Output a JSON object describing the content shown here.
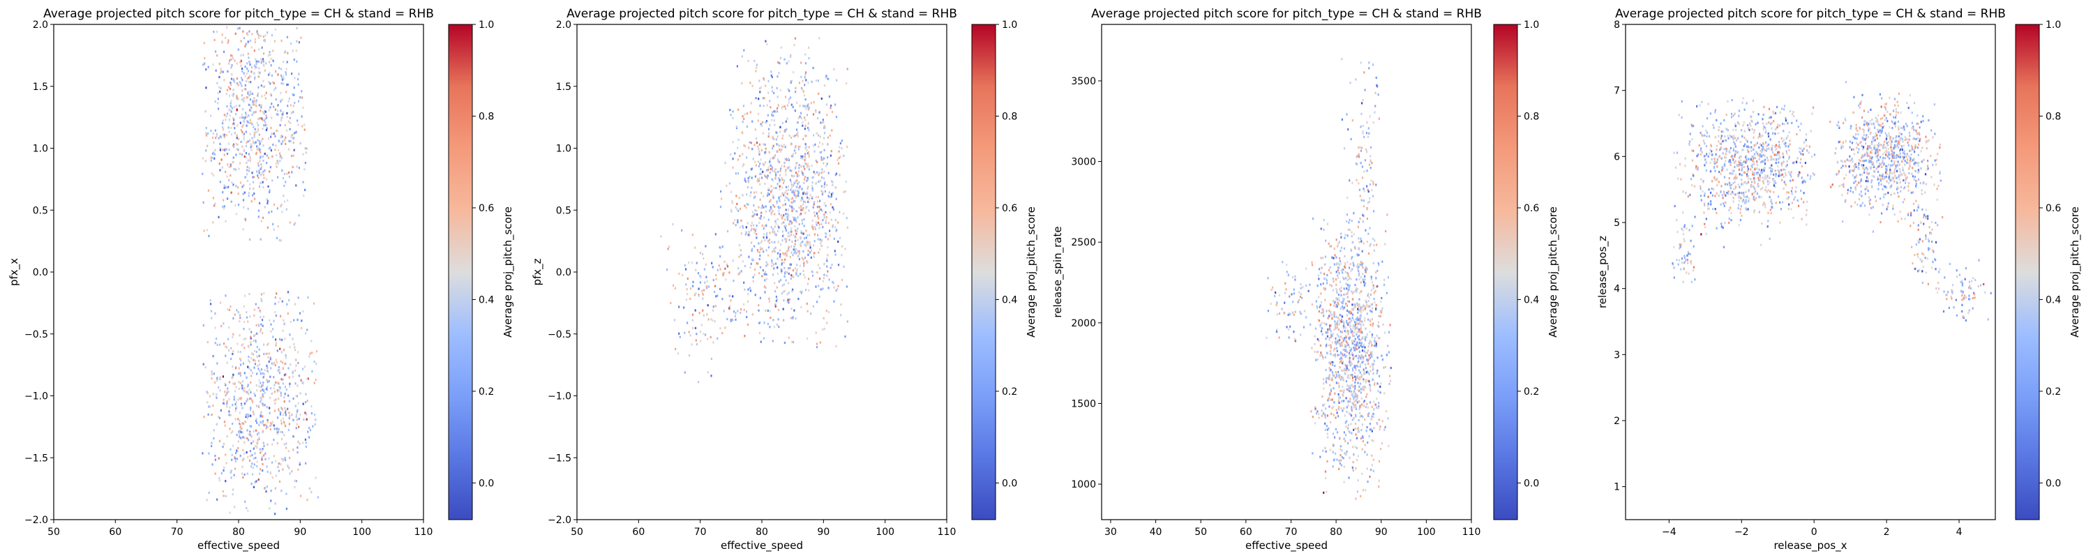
{
  "chart_data": [
    {
      "type": "heatmap",
      "title": "Average projected pitch score for pitch_type = CH & stand = RHB",
      "xlabel": "effective_speed",
      "ylabel": "pfx_x",
      "xlim": [
        50,
        110
      ],
      "ylim": [
        -2.0,
        2.0
      ],
      "x_ticks": [
        "50",
        "60",
        "70",
        "80",
        "90",
        "100",
        "110"
      ],
      "y_ticks": [
        "−2.0",
        "−1.5",
        "−1.0",
        "−0.5",
        "0.0",
        "0.5",
        "1.0",
        "1.5",
        "2.0"
      ],
      "colorbar": {
        "label": "Average proj_pitch_score",
        "ticks": [
          "0.0",
          "0.2",
          "0.4",
          "0.6",
          "0.8",
          "1.0"
        ],
        "colormap": "coolwarm"
      },
      "clusters": [
        {
          "x_center": 82,
          "x_spread": 5,
          "y_center": 1.2,
          "y_spread": 0.45,
          "y_min": 0.25,
          "y_max": 2.0,
          "x_min": 74,
          "x_max": 91,
          "points": 900
        },
        {
          "x_center": 83,
          "x_spread": 5,
          "y_center": -1.0,
          "y_spread": 0.45,
          "y_min": -1.95,
          "y_max": -0.15,
          "x_min": 74,
          "x_max": 93,
          "points": 900
        }
      ]
    },
    {
      "type": "heatmap",
      "title": "Average projected pitch score for pitch_type = CH & stand = RHB",
      "xlabel": "effective_speed",
      "ylabel": "pfx_z",
      "xlim": [
        50,
        110
      ],
      "ylim": [
        -2.0,
        2.0
      ],
      "x_ticks": [
        "50",
        "60",
        "70",
        "80",
        "90",
        "100",
        "110"
      ],
      "y_ticks": [
        "−2.0",
        "−1.5",
        "−1.0",
        "−0.5",
        "0.0",
        "0.5",
        "1.0",
        "1.5",
        "2.0"
      ],
      "colorbar": {
        "label": "Average proj_pitch_score",
        "ticks": [
          "0.0",
          "0.2",
          "0.4",
          "0.6",
          "0.8",
          "1.0"
        ],
        "colormap": "coolwarm"
      },
      "clusters": [
        {
          "x_center": 84,
          "x_spread": 5,
          "y_center": 0.6,
          "y_spread": 0.55,
          "y_min": -0.6,
          "y_max": 1.9,
          "x_min": 73,
          "x_max": 94,
          "points": 1400
        },
        {
          "x_center": 70,
          "x_spread": 3,
          "y_center": -0.2,
          "y_spread": 0.3,
          "y_min": -0.9,
          "y_max": 0.4,
          "x_min": 63,
          "x_max": 76,
          "points": 150
        }
      ]
    },
    {
      "type": "heatmap",
      "title": "Average projected pitch score for pitch_type = CH & stand = RHB",
      "xlabel": "effective_speed",
      "ylabel": "release_spin_rate",
      "xlim": [
        28,
        110
      ],
      "ylim": [
        780,
        3850
      ],
      "x_ticks": [
        "30",
        "40",
        "50",
        "60",
        "70",
        "80",
        "90",
        "100",
        "110"
      ],
      "y_ticks": [
        "1000",
        "1500",
        "2000",
        "2500",
        "3000",
        "3500"
      ],
      "colorbar": {
        "label": "Average proj_pitch_score",
        "ticks": [
          "0.0",
          "0.2",
          "0.4",
          "0.6",
          "0.8",
          "1.0"
        ],
        "colormap": "coolwarm"
      },
      "clusters": [
        {
          "x_center": 83,
          "x_spread": 4,
          "y_center": 1850,
          "y_spread": 380,
          "y_min": 850,
          "y_max": 2700,
          "x_min": 74,
          "x_max": 92,
          "points": 1300
        },
        {
          "x_center": 86,
          "x_spread": 2,
          "y_center": 3000,
          "y_spread": 350,
          "y_min": 2600,
          "y_max": 3650,
          "x_min": 80,
          "x_max": 90,
          "points": 120
        },
        {
          "x_center": 70,
          "x_spread": 3,
          "y_center": 2150,
          "y_spread": 150,
          "y_min": 1850,
          "y_max": 2400,
          "x_min": 63,
          "x_max": 75,
          "points": 80
        }
      ]
    },
    {
      "type": "heatmap",
      "title": "Average projected pitch score for pitch_type = CH & stand = RHB",
      "xlabel": "release_pos_x",
      "ylabel": "release_pos_z",
      "xlim": [
        -5.2,
        5.0
      ],
      "ylim": [
        0.5,
        8.0
      ],
      "x_ticks": [
        "−4",
        "−2",
        "0",
        "2",
        "4"
      ],
      "y_ticks": [
        "1",
        "2",
        "3",
        "4",
        "5",
        "6",
        "7",
        "8"
      ],
      "colorbar": {
        "label": "Average proj_pitch_score",
        "ticks": [
          "0.0",
          "0.2",
          "0.4",
          "0.6",
          "0.8",
          "1.0"
        ],
        "colormap": "coolwarm"
      },
      "clusters": [
        {
          "x_center": -1.8,
          "x_spread": 0.9,
          "y_center": 5.9,
          "y_spread": 0.45,
          "y_min": 4.6,
          "y_max": 6.9,
          "x_min": -3.9,
          "x_max": 0.0,
          "points": 900
        },
        {
          "x_center": 1.9,
          "x_spread": 0.7,
          "y_center": 6.0,
          "y_spread": 0.4,
          "y_min": 4.7,
          "y_max": 7.2,
          "x_min": 0.4,
          "x_max": 3.6,
          "points": 800
        },
        {
          "x_center": 4.0,
          "x_spread": 0.4,
          "y_center": 4.0,
          "y_spread": 0.25,
          "y_min": 3.5,
          "y_max": 4.5,
          "x_min": 3.2,
          "x_max": 5.0,
          "points": 80
        },
        {
          "x_center": -3.6,
          "x_spread": 0.2,
          "y_center": 4.5,
          "y_spread": 0.3,
          "y_min": 4.0,
          "y_max": 5.2,
          "x_min": -4.0,
          "x_max": -3.2,
          "points": 60
        },
        {
          "x_center": 3.0,
          "x_spread": 0.2,
          "y_center": 4.7,
          "y_spread": 0.4,
          "y_min": 4.0,
          "y_max": 5.3,
          "x_min": 2.6,
          "x_max": 3.5,
          "points": 80
        }
      ]
    }
  ]
}
